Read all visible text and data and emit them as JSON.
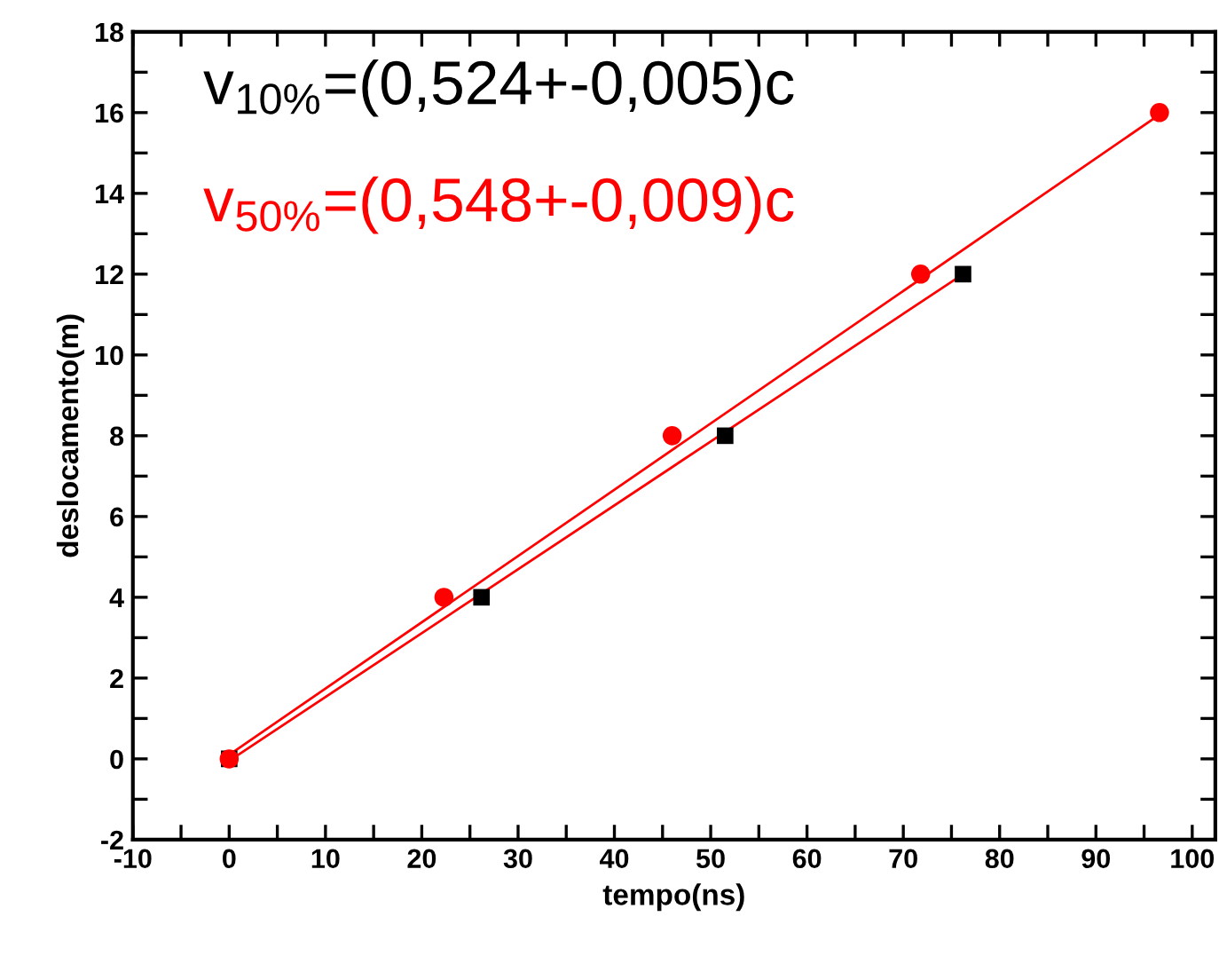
{
  "chart_data": {
    "type": "scatter",
    "xlabel": "tempo(ns)",
    "ylabel": "deslocamento(m)",
    "xlim": [
      -10,
      102.4
    ],
    "ylim": [
      -2,
      18
    ],
    "xticks": [
      -10,
      {
        "value": -5,
        "label": null
      },
      0,
      {
        "value": 5,
        "label": null
      },
      10,
      {
        "value": 15,
        "label": null
      },
      20,
      {
        "value": 25,
        "label": null
      },
      30,
      {
        "value": 35,
        "label": null
      },
      40,
      {
        "value": 45,
        "label": null
      },
      50,
      {
        "value": 55,
        "label": null
      },
      60,
      {
        "value": 65,
        "label": null
      },
      70,
      {
        "value": 75,
        "label": null
      },
      80,
      {
        "value": 85,
        "label": null
      },
      90,
      {
        "value": 95,
        "label": null
      },
      100
    ],
    "yticks": [
      -2,
      {
        "value": -1,
        "label": null
      },
      0,
      {
        "value": 1,
        "label": null
      },
      2,
      {
        "value": 3,
        "label": null
      },
      4,
      {
        "value": 5,
        "label": null
      },
      6,
      {
        "value": 7,
        "label": null
      },
      8,
      {
        "value": 9,
        "label": null
      },
      10,
      {
        "value": 11,
        "label": null
      },
      12,
      {
        "value": 13,
        "label": null
      },
      14,
      {
        "value": 15,
        "label": null
      },
      16,
      {
        "value": 17,
        "label": null
      },
      18
    ],
    "grid": false,
    "annotations": [
      "v$_{10%}$=(0,524+-0,005)c",
      "v$_{50%}$=(0,548+-0,009)c"
    ],
    "series": [
      {
        "type": "line",
        "color": "#ff0000",
        "marker": "none",
        "x": [
          0,
          76.2
        ],
        "values": [
          -0.05,
          12.0
        ]
      },
      {
        "type": "line",
        "color": "#ff0000",
        "marker": "none",
        "x": [
          0,
          96.6
        ],
        "values": [
          0.1,
          15.95
        ]
      },
      {
        "color": "#000000",
        "marker": "square",
        "x": [
          0,
          26.2,
          51.5,
          76.2
        ],
        "values": [
          0,
          4,
          8,
          12
        ]
      },
      {
        "color": "#ff0000",
        "marker": "circle",
        "x": [
          0,
          22.3,
          46.0,
          71.8,
          96.6
        ],
        "values": [
          0,
          4,
          8,
          12,
          16
        ]
      }
    ]
  }
}
